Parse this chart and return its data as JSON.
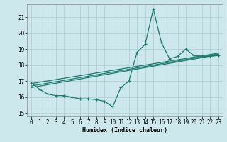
{
  "xlabel": "Humidex (Indice chaleur)",
  "bg_color": "#cce8ec",
  "grid_color": "#b0d0d8",
  "line_color": "#1a7a6e",
  "xlim": [
    -0.5,
    23.5
  ],
  "ylim": [
    14.8,
    21.8
  ],
  "yticks": [
    15,
    16,
    17,
    18,
    19,
    20,
    21
  ],
  "xticks": [
    0,
    1,
    2,
    3,
    4,
    5,
    6,
    7,
    8,
    9,
    10,
    11,
    12,
    13,
    14,
    15,
    16,
    17,
    18,
    19,
    20,
    21,
    22,
    23
  ],
  "lines": [
    {
      "x": [
        0,
        1,
        2,
        3,
        4,
        5,
        6,
        7,
        8,
        9,
        10,
        11,
        12,
        13,
        14,
        15,
        16,
        17,
        18,
        19,
        20,
        21,
        22,
        23
      ],
      "y": [
        16.9,
        16.5,
        16.2,
        16.1,
        16.1,
        16.0,
        15.9,
        15.9,
        15.85,
        15.75,
        15.4,
        16.6,
        17.0,
        18.8,
        19.3,
        21.5,
        19.4,
        18.4,
        18.55,
        19.0,
        18.6,
        18.55,
        18.55,
        18.6
      ]
    },
    {
      "x": [
        0,
        23
      ],
      "y": [
        16.6,
        18.65
      ]
    },
    {
      "x": [
        0,
        23
      ],
      "y": [
        16.85,
        18.75
      ]
    },
    {
      "x": [
        0,
        23
      ],
      "y": [
        16.7,
        18.7
      ]
    }
  ],
  "marker": "+",
  "marker_lines": [
    0
  ]
}
